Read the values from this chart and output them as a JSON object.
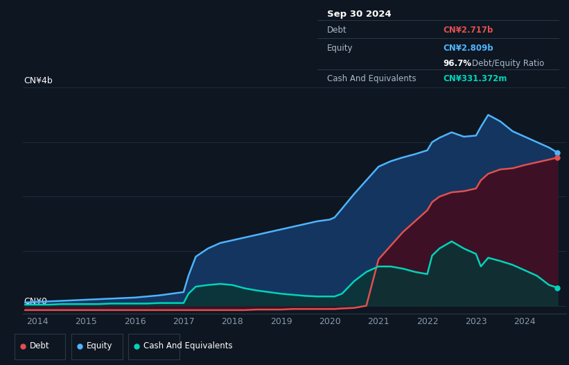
{
  "bg_color": "#0e1621",
  "plot_bg_color": "#0e1621",
  "title_box": {
    "date": "Sep 30 2024",
    "debt_label": "Debt",
    "debt_value": "CN¥2.717b",
    "equity_label": "Equity",
    "equity_value": "CN¥2.809b",
    "ratio_value": "96.7%",
    "ratio_label": "Debt/Equity Ratio",
    "cash_label": "Cash And Equivalents",
    "cash_value": "CN¥331.372m"
  },
  "ylabel_top": "CN¥4b",
  "ylabel_bottom": "CN¥0",
  "x_ticks": [
    2014,
    2015,
    2016,
    2017,
    2018,
    2019,
    2020,
    2021,
    2022,
    2023,
    2024
  ],
  "ylim": [
    -0.15,
    4.0
  ],
  "legend": [
    {
      "label": "Debt",
      "color": "#e05050"
    },
    {
      "label": "Equity",
      "color": "#4eb5ff"
    },
    {
      "label": "Cash And Equivalents",
      "color": "#00d4bb"
    }
  ],
  "equity_color": "#4eb5ff",
  "equity_fill": "#143560",
  "debt_color": "#e05050",
  "debt_fill": "#3d1025",
  "cash_color": "#00d4bb",
  "cash_fill": "#0a3535",
  "grid_color": "#1e2d3d",
  "years": [
    2013.75,
    2014.0,
    2014.25,
    2014.5,
    2014.75,
    2015.0,
    2015.25,
    2015.5,
    2015.75,
    2016.0,
    2016.25,
    2016.5,
    2016.75,
    2017.0,
    2017.1,
    2017.25,
    2017.5,
    2017.75,
    2018.0,
    2018.25,
    2018.5,
    2018.75,
    2019.0,
    2019.25,
    2019.5,
    2019.75,
    2020.0,
    2020.1,
    2020.25,
    2020.5,
    2020.75,
    2021.0,
    2021.25,
    2021.5,
    2021.75,
    2022.0,
    2022.1,
    2022.25,
    2022.5,
    2022.75,
    2023.0,
    2023.1,
    2023.25,
    2023.5,
    2023.75,
    2024.0,
    2024.25,
    2024.5,
    2024.67
  ],
  "equity": [
    0.06,
    0.07,
    0.08,
    0.09,
    0.1,
    0.11,
    0.12,
    0.13,
    0.14,
    0.15,
    0.17,
    0.19,
    0.22,
    0.25,
    0.55,
    0.9,
    1.05,
    1.15,
    1.2,
    1.25,
    1.3,
    1.35,
    1.4,
    1.45,
    1.5,
    1.55,
    1.58,
    1.62,
    1.78,
    2.05,
    2.3,
    2.55,
    2.65,
    2.72,
    2.78,
    2.85,
    3.0,
    3.08,
    3.18,
    3.1,
    3.12,
    3.28,
    3.5,
    3.38,
    3.2,
    3.1,
    3.0,
    2.9,
    2.809
  ],
  "debt": [
    -0.08,
    -0.08,
    -0.08,
    -0.08,
    -0.08,
    -0.08,
    -0.08,
    -0.08,
    -0.08,
    -0.08,
    -0.08,
    -0.08,
    -0.08,
    -0.08,
    -0.08,
    -0.08,
    -0.08,
    -0.08,
    -0.08,
    -0.08,
    -0.07,
    -0.07,
    -0.07,
    -0.06,
    -0.06,
    -0.06,
    -0.06,
    -0.06,
    -0.05,
    -0.04,
    0.0,
    0.85,
    1.1,
    1.35,
    1.55,
    1.75,
    1.9,
    2.0,
    2.08,
    2.1,
    2.15,
    2.3,
    2.42,
    2.5,
    2.52,
    2.58,
    2.63,
    2.68,
    2.717
  ],
  "cash": [
    0.02,
    0.02,
    0.02,
    0.03,
    0.03,
    0.03,
    0.03,
    0.04,
    0.04,
    0.04,
    0.04,
    0.05,
    0.05,
    0.05,
    0.22,
    0.35,
    0.38,
    0.4,
    0.38,
    0.32,
    0.28,
    0.25,
    0.22,
    0.2,
    0.18,
    0.17,
    0.17,
    0.17,
    0.22,
    0.45,
    0.62,
    0.72,
    0.72,
    0.68,
    0.62,
    0.58,
    0.92,
    1.05,
    1.18,
    1.05,
    0.95,
    0.72,
    0.88,
    0.82,
    0.75,
    0.65,
    0.55,
    0.38,
    0.3314
  ]
}
